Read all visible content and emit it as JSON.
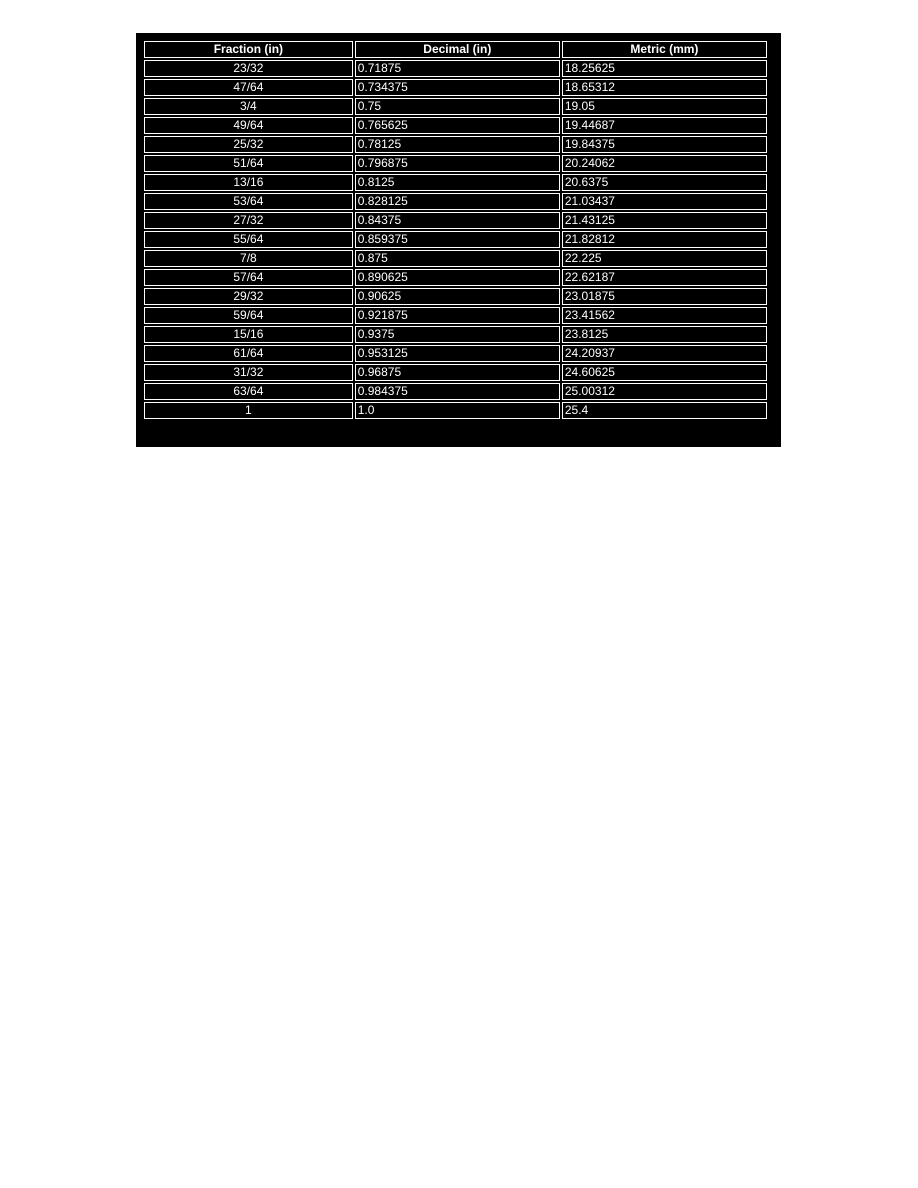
{
  "table": {
    "headers": [
      "Fraction (in)",
      "Decimal (in)",
      "Metric (mm)"
    ],
    "rows": [
      [
        "23/32",
        "0.71875",
        "18.25625"
      ],
      [
        "47/64",
        "0.734375",
        "18.65312"
      ],
      [
        "3/4",
        "0.75",
        "19.05"
      ],
      [
        "49/64",
        "0.765625",
        "19.44687"
      ],
      [
        "25/32",
        "0.78125",
        "19.84375"
      ],
      [
        "51/64",
        "0.796875",
        "20.24062"
      ],
      [
        "13/16",
        "0.8125",
        "20.6375"
      ],
      [
        "53/64",
        "0.828125",
        "21.03437"
      ],
      [
        "27/32",
        "0.84375",
        "21.43125"
      ],
      [
        "55/64",
        "0.859375",
        "21.82812"
      ],
      [
        "7/8",
        "0.875",
        "22.225"
      ],
      [
        "57/64",
        "0.890625",
        "22.62187"
      ],
      [
        "29/32",
        "0.90625",
        "23.01875"
      ],
      [
        "59/64",
        "0.921875",
        "23.41562"
      ],
      [
        "15/16",
        "0.9375",
        "23.8125"
      ],
      [
        "61/64",
        "0.953125",
        "24.20937"
      ],
      [
        "31/32",
        "0.96875",
        "24.60625"
      ],
      [
        "63/64",
        "0.984375",
        "25.00312"
      ],
      [
        "1",
        "1.0",
        "25.4"
      ]
    ]
  }
}
